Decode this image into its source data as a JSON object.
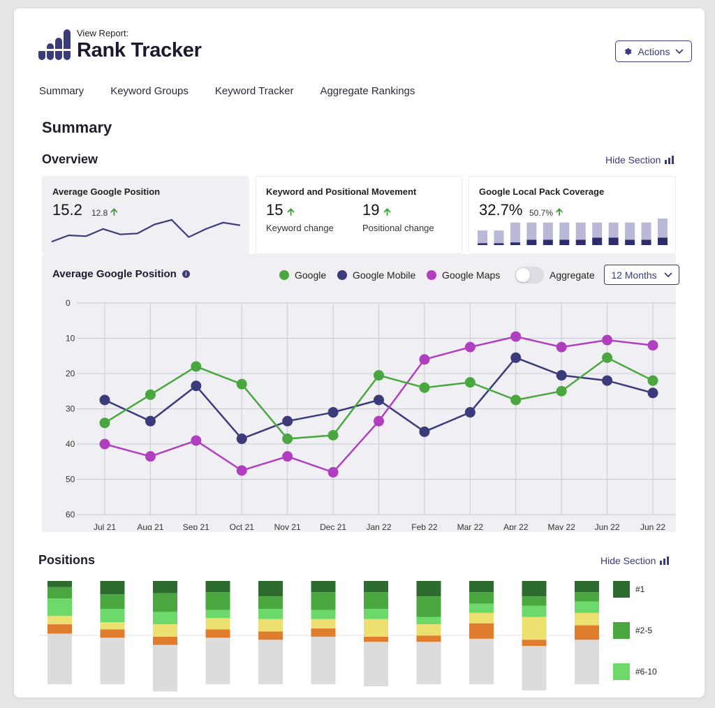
{
  "header": {
    "view_report_label": "View Report:",
    "title": "Rank Tracker",
    "actions_label": "Actions",
    "brand_color": "#3b3a7a"
  },
  "nav": {
    "tabs": [
      {
        "label": "Summary"
      },
      {
        "label": "Keyword Groups"
      },
      {
        "label": "Keyword Tracker"
      },
      {
        "label": "Aggregate Rankings"
      }
    ]
  },
  "summary": {
    "heading": "Summary",
    "overview_heading": "Overview",
    "hide_section_label": "Hide Section"
  },
  "kpis": {
    "avg_position": {
      "label": "Average Google Position",
      "value": "15.2",
      "previous": "12.8",
      "sparkline": [
        27.5,
        24.0,
        24.5,
        20.5,
        23.5,
        23.0,
        18.0,
        15.5,
        25.0,
        20.5,
        17.0,
        18.5
      ]
    },
    "movement": {
      "label": "Keyword and Positional Movement",
      "keyword_value": "15",
      "keyword_caption": "Keyword change",
      "positional_value": "19",
      "positional_caption": "Positional change"
    },
    "local_pack": {
      "label": "Google Local Pack Coverage",
      "value": "32.7%",
      "previous": "50.7%",
      "bars_total": [
        0.55,
        0.55,
        0.85,
        0.85,
        0.85,
        0.85,
        0.85,
        0.85,
        0.85,
        0.85,
        0.85,
        1.0
      ],
      "bars_fill": [
        0.07,
        0.07,
        0.1,
        0.2,
        0.2,
        0.2,
        0.2,
        0.28,
        0.28,
        0.2,
        0.2,
        0.28
      ]
    }
  },
  "chart_controls": {
    "title": "Average Google Position",
    "aggregate_label": "Aggregate",
    "aggregate_on": false,
    "range_label": "12 Months"
  },
  "chart_data": {
    "type": "line",
    "x": [
      "Jul 21",
      "Aug 21",
      "Sep 21",
      "Oct 21",
      "Nov 21",
      "Dec 21",
      "Jan 22",
      "Feb 22",
      "Mar 22",
      "Apr 22",
      "May 22",
      "Jun 22",
      "Jun 22"
    ],
    "ylim": [
      0,
      60
    ],
    "y_inverted": true,
    "y_ticks": [
      0,
      10,
      20,
      30,
      40,
      50,
      60
    ],
    "grid": true,
    "series": [
      {
        "name": "Google",
        "color": "#4aa63e",
        "values": [
          34,
          26,
          18,
          23,
          38.5,
          37.5,
          20.5,
          24,
          22.5,
          27.5,
          25,
          15.5,
          22
        ]
      },
      {
        "name": "Google Mobile",
        "color": "#3b3a7a",
        "values": [
          27.5,
          33.5,
          23.5,
          38.5,
          33.5,
          31,
          27.5,
          36.5,
          31,
          15.5,
          20.5,
          22,
          25.5
        ]
      },
      {
        "name": "Google Maps",
        "color": "#b03fc0",
        "values": [
          40,
          43.5,
          39,
          47.5,
          43.5,
          48,
          33.5,
          16,
          12.5,
          9.5,
          12.5,
          10.5,
          12
        ]
      }
    ]
  },
  "positions": {
    "heading": "Positions",
    "hide_section_label": "Hide Section",
    "legend": [
      {
        "label": "#1",
        "color": "#2e6b2e"
      },
      {
        "label": "#2-5",
        "color": "#4aa63e"
      },
      {
        "label": "#6-10",
        "color": "#6dd96a"
      }
    ],
    "segment_colors": [
      "#2e6b2e",
      "#4aa63e",
      "#6dd96a",
      "#ece070",
      "#e07c2e",
      "#dcdcdc"
    ],
    "bars": [
      [
        0.06,
        0.11,
        0.17,
        0.08,
        0.09,
        0.49
      ],
      [
        0.13,
        0.14,
        0.13,
        0.07,
        0.08,
        0.45
      ],
      [
        0.12,
        0.18,
        0.12,
        0.12,
        0.08,
        0.45
      ],
      [
        0.11,
        0.17,
        0.08,
        0.11,
        0.08,
        0.45
      ],
      [
        0.15,
        0.12,
        0.1,
        0.12,
        0.08,
        0.43
      ],
      [
        0.11,
        0.17,
        0.09,
        0.09,
        0.08,
        0.46
      ],
      [
        0.11,
        0.16,
        0.1,
        0.17,
        0.05,
        0.43
      ],
      [
        0.15,
        0.2,
        0.07,
        0.11,
        0.06,
        0.41
      ],
      [
        0.11,
        0.11,
        0.09,
        0.1,
        0.15,
        0.44
      ],
      [
        0.15,
        0.09,
        0.11,
        0.22,
        0.06,
        0.43
      ],
      [
        0.11,
        0.09,
        0.11,
        0.12,
        0.14,
        0.43
      ]
    ]
  }
}
